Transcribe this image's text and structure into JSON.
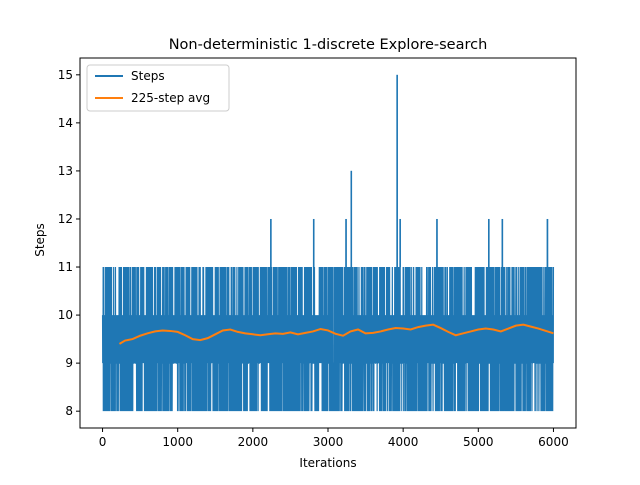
{
  "chart_data": {
    "type": "line",
    "title": "Non-deterministic 1-discrete Explore-search",
    "xlabel": "Iterations",
    "ylabel": "Steps",
    "xlim": [
      -300,
      6300
    ],
    "ylim": [
      7.65,
      15.35
    ],
    "xticks": [
      0,
      1000,
      2000,
      3000,
      4000,
      5000,
      6000
    ],
    "xtick_labels": [
      "0",
      "1000",
      "2000",
      "3000",
      "4000",
      "5000",
      "6000"
    ],
    "yticks": [
      8,
      9,
      10,
      11,
      12,
      13,
      14,
      15
    ],
    "ytick_labels": [
      "8",
      "9",
      "10",
      "11",
      "12",
      "13",
      "14",
      "15"
    ],
    "grid": false,
    "legend_position": "top-left",
    "n_iterations": 6000,
    "series": [
      {
        "name": "Steps",
        "color": "#1f77b4",
        "description": "per-iteration step count oscillating between 8 and 11 across all iterations",
        "band_min": 8,
        "band_max": 11,
        "spikes": [
          {
            "x": 2240,
            "y": 12
          },
          {
            "x": 2810,
            "y": 12
          },
          {
            "x": 3240,
            "y": 12
          },
          {
            "x": 3310,
            "y": 13
          },
          {
            "x": 3920,
            "y": 15
          },
          {
            "x": 3960,
            "y": 12
          },
          {
            "x": 4450,
            "y": 12
          },
          {
            "x": 5140,
            "y": 12
          },
          {
            "x": 5320,
            "y": 12
          },
          {
            "x": 5920,
            "y": 12
          }
        ]
      },
      {
        "name": "225-step avg",
        "color": "#ff7f0e",
        "x": [
          225,
          300,
          400,
          500,
          600,
          700,
          800,
          900,
          1000,
          1100,
          1200,
          1300,
          1400,
          1500,
          1600,
          1700,
          1800,
          1900,
          2000,
          2100,
          2200,
          2300,
          2400,
          2500,
          2600,
          2700,
          2800,
          2900,
          3000,
          3100,
          3200,
          3300,
          3400,
          3500,
          3600,
          3700,
          3800,
          3900,
          4000,
          4100,
          4200,
          4300,
          4400,
          4500,
          4600,
          4700,
          4800,
          4900,
          5000,
          5100,
          5200,
          5300,
          5400,
          5500,
          5600,
          5700,
          5800,
          5900,
          6000
        ],
        "values": [
          9.4,
          9.47,
          9.5,
          9.57,
          9.62,
          9.66,
          9.68,
          9.67,
          9.65,
          9.58,
          9.5,
          9.48,
          9.52,
          9.6,
          9.68,
          9.7,
          9.65,
          9.62,
          9.6,
          9.58,
          9.6,
          9.62,
          9.61,
          9.64,
          9.6,
          9.63,
          9.66,
          9.71,
          9.68,
          9.61,
          9.57,
          9.66,
          9.7,
          9.62,
          9.63,
          9.66,
          9.7,
          9.73,
          9.72,
          9.7,
          9.75,
          9.78,
          9.8,
          9.73,
          9.65,
          9.58,
          9.62,
          9.66,
          9.7,
          9.72,
          9.7,
          9.66,
          9.72,
          9.78,
          9.8,
          9.76,
          9.72,
          9.67,
          9.62
        ]
      }
    ]
  }
}
